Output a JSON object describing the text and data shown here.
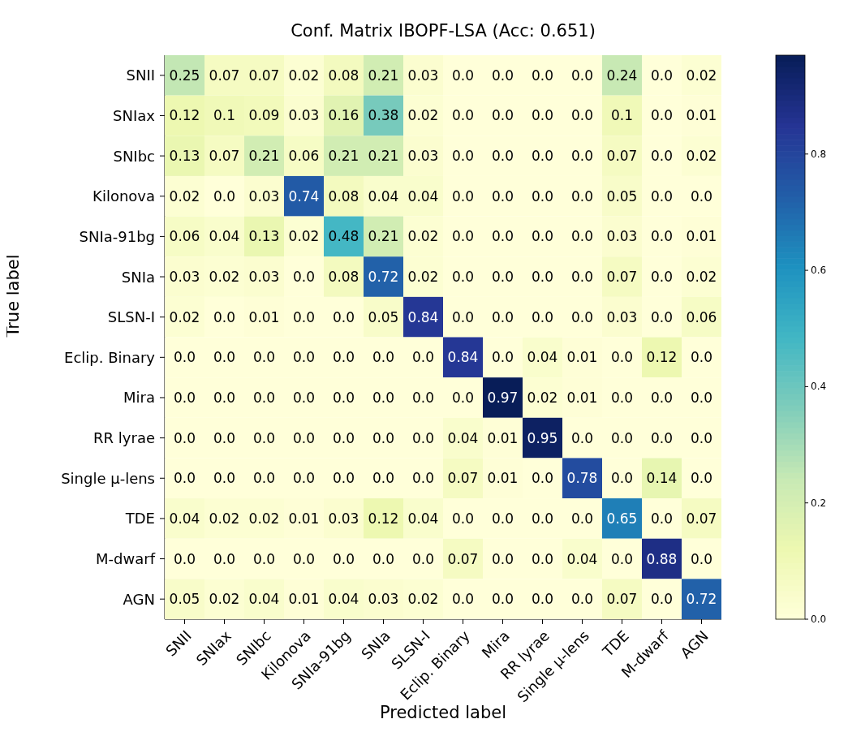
{
  "chart_data": {
    "type": "heatmap",
    "title": "Conf. Matrix IBOPF-LSA (Acc: 0.651)",
    "xlabel": "Predicted label",
    "ylabel": "True label",
    "categories": [
      "SNII",
      "SNIax",
      "SNIbc",
      "Kilonova",
      "SNIa-91bg",
      "SNIa",
      "SLSN-I",
      "Eclip. Binary",
      "Mira",
      "RR lyrae",
      "Single μ-lens",
      "TDE",
      "M-dwarf",
      "AGN"
    ],
    "y_categories": [
      "SNII",
      "SNIax",
      "SNIbc",
      "Kilonova",
      "SNIa-91bg",
      "SNIa",
      "SLSN-I",
      "Eclip. Binary",
      "Mira",
      "RR lyrae",
      "Single μ-lens",
      "TDE",
      "M-dwarf",
      "AGN"
    ],
    "cells": [
      [
        0.25,
        0.07,
        0.07,
        0.02,
        0.08,
        0.21,
        0.03,
        0,
        0,
        0,
        0,
        0.24,
        0,
        0.02
      ],
      [
        0.12,
        0.1,
        0.09,
        0.03,
        0.16,
        0.38,
        0.02,
        0,
        0,
        0,
        0,
        0.1,
        0,
        0.01
      ],
      [
        0.13,
        0.07,
        0.21,
        0.06,
        0.21,
        0.21,
        0.03,
        0,
        0,
        0,
        0,
        0.07,
        0,
        0.02
      ],
      [
        0.02,
        0,
        0.03,
        0.74,
        0.08,
        0.04,
        0.04,
        0,
        0,
        0,
        0,
        0.05,
        0,
        0
      ],
      [
        0.06,
        0.04,
        0.13,
        0.02,
        0.48,
        0.21,
        0.02,
        0,
        0,
        0,
        0,
        0.03,
        0,
        0.01
      ],
      [
        0.03,
        0.02,
        0.03,
        0,
        0.08,
        0.72,
        0.02,
        0,
        0,
        0,
        0,
        0.07,
        0,
        0.02
      ],
      [
        0.02,
        0,
        0.01,
        0,
        0,
        0.05,
        0.84,
        0,
        0,
        0,
        0,
        0.03,
        0,
        0.06
      ],
      [
        0,
        0,
        0,
        0,
        0,
        0,
        0,
        0.84,
        0,
        0.04,
        0.01,
        0,
        0.12,
        0
      ],
      [
        0,
        0,
        0,
        0,
        0,
        0,
        0,
        0,
        0.97,
        0.02,
        0.01,
        0,
        0,
        0
      ],
      [
        0,
        0,
        0,
        0,
        0,
        0,
        0,
        0.04,
        0.01,
        0.95,
        0,
        0,
        0,
        0
      ],
      [
        0,
        0,
        0,
        0,
        0,
        0,
        0,
        0.07,
        0.01,
        0,
        0.78,
        0,
        0.14,
        0
      ],
      [
        0.04,
        0.02,
        0.02,
        0.01,
        0.03,
        0.12,
        0.04,
        0,
        0,
        0,
        0,
        0.65,
        0,
        0.07
      ],
      [
        0,
        0,
        0,
        0,
        0,
        0,
        0,
        0.07,
        0,
        0,
        0.04,
        0,
        0.88,
        0
      ],
      [
        0.05,
        0.02,
        0.04,
        0.01,
        0.04,
        0.03,
        0.02,
        0,
        0,
        0,
        0,
        0.07,
        0,
        0.72
      ]
    ],
    "cell_labels": [
      [
        "0.25",
        "0.07",
        "0.07",
        "0.02",
        "0.08",
        "0.21",
        "0.03",
        "0.0",
        "0.0",
        "0.0",
        "0.0",
        "0.24",
        "0.0",
        "0.02"
      ],
      [
        "0.12",
        "0.1",
        "0.09",
        "0.03",
        "0.16",
        "0.38",
        "0.02",
        "0.0",
        "0.0",
        "0.0",
        "0.0",
        "0.1",
        "0.0",
        "0.01"
      ],
      [
        "0.13",
        "0.07",
        "0.21",
        "0.06",
        "0.21",
        "0.21",
        "0.03",
        "0.0",
        "0.0",
        "0.0",
        "0.0",
        "0.07",
        "0.0",
        "0.02"
      ],
      [
        "0.02",
        "0.0",
        "0.03",
        "0.74",
        "0.08",
        "0.04",
        "0.04",
        "0.0",
        "0.0",
        "0.0",
        "0.0",
        "0.05",
        "0.0",
        "0.0"
      ],
      [
        "0.06",
        "0.04",
        "0.13",
        "0.02",
        "0.48",
        "0.21",
        "0.02",
        "0.0",
        "0.0",
        "0.0",
        "0.0",
        "0.03",
        "0.0",
        "0.01"
      ],
      [
        "0.03",
        "0.02",
        "0.03",
        "0.0",
        "0.08",
        "0.72",
        "0.02",
        "0.0",
        "0.0",
        "0.0",
        "0.0",
        "0.07",
        "0.0",
        "0.02"
      ],
      [
        "0.02",
        "0.0",
        "0.01",
        "0.0",
        "0.0",
        "0.05",
        "0.84",
        "0.0",
        "0.0",
        "0.0",
        "0.0",
        "0.03",
        "0.0",
        "0.06"
      ],
      [
        "0.0",
        "0.0",
        "0.0",
        "0.0",
        "0.0",
        "0.0",
        "0.0",
        "0.84",
        "0.0",
        "0.04",
        "0.01",
        "0.0",
        "0.12",
        "0.0"
      ],
      [
        "0.0",
        "0.0",
        "0.0",
        "0.0",
        "0.0",
        "0.0",
        "0.0",
        "0.0",
        "0.97",
        "0.02",
        "0.01",
        "0.0",
        "0.0",
        "0.0"
      ],
      [
        "0.0",
        "0.0",
        "0.0",
        "0.0",
        "0.0",
        "0.0",
        "0.0",
        "0.04",
        "0.01",
        "0.95",
        "0.0",
        "0.0",
        "0.0",
        "0.0"
      ],
      [
        "0.0",
        "0.0",
        "0.0",
        "0.0",
        "0.0",
        "0.0",
        "0.0",
        "0.07",
        "0.01",
        "0.0",
        "0.78",
        "0.0",
        "0.14",
        "0.0"
      ],
      [
        "0.04",
        "0.02",
        "0.02",
        "0.01",
        "0.03",
        "0.12",
        "0.04",
        "0.0",
        "0.0",
        "0.0",
        "0.0",
        "0.65",
        "0.0",
        "0.07"
      ],
      [
        "0.0",
        "0.0",
        "0.0",
        "0.0",
        "0.0",
        "0.0",
        "0.0",
        "0.07",
        "0.0",
        "0.0",
        "0.04",
        "0.0",
        "0.88",
        "0.0"
      ],
      [
        "0.05",
        "0.02",
        "0.04",
        "0.01",
        "0.04",
        "0.03",
        "0.02",
        "0.0",
        "0.0",
        "0.0",
        "0.0",
        "0.07",
        "0.0",
        "0.72"
      ]
    ],
    "data_labels": true,
    "clim": [
      0,
      0.97
    ],
    "cticks": [
      {
        "value": 0,
        "label": "0.0"
      },
      0.2,
      0.4,
      0.6,
      0.8
    ]
  }
}
